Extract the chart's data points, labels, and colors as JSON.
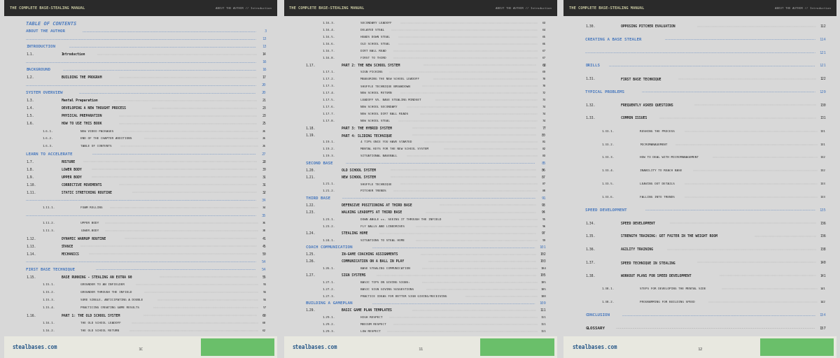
{
  "bg_color": "#d8d8d8",
  "page_bg": "#f5f5f0",
  "header_bg": "#2a2a2a",
  "header_text_color": "#c8c8a0",
  "header_title": "THE COMPLETE BASE-STEALING MANUAL",
  "header_right": "ABOUT THE AUTHOR // Introduction",
  "footer_text": "stealbases.com",
  "footer_bg": "#6abf6a",
  "blue_color": "#4a7abf",
  "dark_text": "#2a2a2a",
  "pages": [
    {
      "page_num": "1C",
      "entries": [
        {
          "level": "section_title",
          "text": "TABLE OF CONTENTS",
          "page": ""
        },
        {
          "level": "h1_blue",
          "text": "ABOUT THE AUTHOR",
          "page": "3"
        },
        {
          "level": "dots_only",
          "text": "",
          "page": "13"
        },
        {
          "level": "h1_blue",
          "text": "INTRODUCTION",
          "page": "13"
        },
        {
          "level": "h2",
          "num": "1.1.",
          "text": "Introduction",
          "page": "14"
        },
        {
          "level": "dots_only",
          "text": "",
          "page": "16"
        },
        {
          "level": "h1_blue",
          "text": "BACKGROUND",
          "page": "16"
        },
        {
          "level": "h2",
          "num": "1.2.",
          "text": "BUILDING THE PROGRAM",
          "page": "17"
        },
        {
          "level": "dots_only",
          "text": "",
          "page": "20"
        },
        {
          "level": "h1_blue",
          "text": "SYSTEM OVERVIEW",
          "page": "20"
        },
        {
          "level": "h2",
          "num": "1.3.",
          "text": "Mental Preparation",
          "page": "21"
        },
        {
          "level": "h2",
          "num": "1.4.",
          "text": "DEVELOPING A NEW THOUGHT PROCESS",
          "page": "23"
        },
        {
          "level": "h2",
          "num": "1.5.",
          "text": "PHYSICAL PREPARATION",
          "page": "23"
        },
        {
          "level": "h2",
          "num": "1.6.",
          "text": "HOW TO USE THIS BOOK",
          "page": "25"
        },
        {
          "level": "h3",
          "num": "1.6.1.",
          "text": "NEW VIDEO PACKAGES",
          "page": "26"
        },
        {
          "level": "h3",
          "num": "1.6.2.",
          "text": "END OF THE CHAPTER ADDITIONS",
          "page": "26"
        },
        {
          "level": "h3",
          "num": "1.6.3.",
          "text": "TABLE OF CONTENTS",
          "page": "26"
        },
        {
          "level": "h1_blue",
          "text": "LEARN TO ACCELERATE",
          "page": "27"
        },
        {
          "level": "h2",
          "num": "1.7.",
          "text": "POSTURE",
          "page": "28"
        },
        {
          "level": "h2",
          "num": "1.8.",
          "text": "LOWER BODY",
          "page": "30"
        },
        {
          "level": "h2",
          "num": "1.9.",
          "text": "UPPER BODY",
          "page": "31"
        },
        {
          "level": "h2",
          "num": "1.10.",
          "text": "CORRECTIVE MOVEMENTS",
          "page": "31"
        },
        {
          "level": "h2",
          "num": "1.11.",
          "text": "STATIC STRETCHING ROUTINE",
          "page": "32"
        },
        {
          "level": "dots_only",
          "text": "",
          "page": "34"
        },
        {
          "level": "h3",
          "num": "1.11.1.",
          "text": "FOAM ROLLING",
          "page": "34"
        },
        {
          "level": "dots_only",
          "text": "",
          "page": "35"
        },
        {
          "level": "h3",
          "num": "1.11.2.",
          "text": "UPPER BODY",
          "page": "36"
        },
        {
          "level": "h3",
          "num": "1.11.3.",
          "text": "LOWER-BODY",
          "page": "38"
        },
        {
          "level": "h2",
          "num": "1.12.",
          "text": "DYNAMIC WARMUP ROUTINE",
          "page": "41"
        },
        {
          "level": "h2",
          "num": "1.13.",
          "text": "STANCE",
          "page": "45"
        },
        {
          "level": "h2",
          "num": "1.14.",
          "text": "MECHANICS",
          "page": "50"
        },
        {
          "level": "dots_only",
          "text": "",
          "page": "54"
        },
        {
          "level": "h1_blue",
          "text": "FIRST BASE TECHNIQUE",
          "page": "54"
        },
        {
          "level": "h2",
          "num": "1.15.",
          "text": "BASE RUNNING - STEALING AN EXTRA 90",
          "page": "55"
        },
        {
          "level": "h3",
          "num": "1.15.1.",
          "text": "GROUNDER TO AN INFIELDER",
          "page": "55"
        },
        {
          "level": "h3",
          "num": "1.15.2.",
          "text": "GROUNDER THROUGH THE INFIELD",
          "page": "56"
        },
        {
          "level": "h3",
          "num": "1.15.3.",
          "text": "SURE SINGLE, ANTICIPATING A DOUBLE",
          "page": "56"
        },
        {
          "level": "h3",
          "num": "1.15.4.",
          "text": "PRACTICING CREATING GAME RESULTS",
          "page": "57"
        },
        {
          "level": "h2",
          "num": "1.16.",
          "text": "PART 1: THE OLD SCHOOL SYSTEM",
          "page": "60"
        },
        {
          "level": "h3",
          "num": "1.16.1.",
          "text": "THE OLD SCHOOL LEADOFF",
          "page": "60"
        },
        {
          "level": "h3",
          "num": "1.16.2.",
          "text": "THE OLD SCHOOL RETURN",
          "page": "62"
        }
      ]
    },
    {
      "page_num": "11",
      "entries": [
        {
          "level": "h3",
          "num": "1.16.3.",
          "text": "SECONDARY LEADOFF",
          "page": "63"
        },
        {
          "level": "h3",
          "num": "1.16.4.",
          "text": "DELAYED STEAL",
          "page": "64"
        },
        {
          "level": "h3",
          "num": "1.16.5.",
          "text": "HEADS DOWN STEAL",
          "page": "65"
        },
        {
          "level": "h3",
          "num": "1.16.6.",
          "text": "OLD SCHOOL STEAL",
          "page": "66"
        },
        {
          "level": "h3",
          "num": "1.16.7.",
          "text": "DIRT BALL READ",
          "page": "67"
        },
        {
          "level": "h3",
          "num": "1.16.8.",
          "text": "FIRST TO THIRD",
          "page": "67"
        },
        {
          "level": "h2",
          "num": "1.17.",
          "text": "PART 2: THE NEW SCHOOL SYSTEM",
          "page": "68"
        },
        {
          "level": "h3",
          "num": "1.17.1.",
          "text": "SIGN PICKING",
          "page": "69"
        },
        {
          "level": "h3",
          "num": "1.17.2.",
          "text": "MEASURING THE NEW SCHOOL LEADOFF",
          "page": "70"
        },
        {
          "level": "h3",
          "num": "1.17.3.",
          "text": "SHUFFLE TECHNIQUE BREAKDOWN",
          "page": "70"
        },
        {
          "level": "h3",
          "num": "1.17.4.",
          "text": "NEW SCHOOL RETURN",
          "page": "72"
        },
        {
          "level": "h3",
          "num": "1.17.5.",
          "text": "LEADOFF VS. BASE STEALING MINDSET",
          "page": "73"
        },
        {
          "level": "h3",
          "num": "1.17.6.",
          "text": "NEW SCHOOL SECONDARY",
          "page": "74"
        },
        {
          "level": "h3",
          "num": "1.17.7.",
          "text": "NEW SCHOOL DIRT BALL READS",
          "page": "74"
        },
        {
          "level": "h3",
          "num": "1.17.8.",
          "text": "NEW SCHOOL STEAL",
          "page": "74"
        },
        {
          "level": "h2",
          "num": "1.18.",
          "text": "PART 3: THE HYBRID SYSTEM",
          "page": "77"
        },
        {
          "level": "h2",
          "num": "1.19.",
          "text": "PART 4: SLIDING TECHNIQUE",
          "page": "80"
        },
        {
          "level": "h3",
          "num": "1.19.1.",
          "text": "4 TIPS ONCE YOU HAVE STARTED",
          "page": "81"
        },
        {
          "level": "h3",
          "num": "1.19.2.",
          "text": "MENTAL KEYS FOR THE NEW SCHOOL SYSTEM",
          "page": "82"
        },
        {
          "level": "h3",
          "num": "1.19.3.",
          "text": "SITUATIONAL BASEBALL",
          "page": "83"
        },
        {
          "level": "h1_blue",
          "text": "SECOND BASE",
          "page": "85"
        },
        {
          "level": "h2",
          "num": "1.20.",
          "text": "OLD SCHOOL SYSTEM",
          "page": "86"
        },
        {
          "level": "h2",
          "num": "1.21.",
          "text": "NEW SCHOOL SYSTEM",
          "page": "87"
        },
        {
          "level": "h3",
          "num": "1.21.1.",
          "text": "SHUFFLE TECHNIQUE",
          "page": "87"
        },
        {
          "level": "h3",
          "num": "1.21.2.",
          "text": "PITCHER TRENDS",
          "page": "88"
        },
        {
          "level": "h1_blue",
          "text": "THIRD BASE",
          "page": "91"
        },
        {
          "level": "h2",
          "num": "1.22.",
          "text": "DEFENSIVE POSITIONING AT THIRD BASE",
          "page": "93"
        },
        {
          "level": "h2",
          "num": "1.23.",
          "text": "WALKING LEADOFFS AT THIRD BASE",
          "page": "94"
        },
        {
          "level": "h3",
          "num": "1.23.1.",
          "text": "DOWN ANGLE vs. SEEING IT THROUGH THE INFIELD",
          "page": "95"
        },
        {
          "level": "h3",
          "num": "1.23.2.",
          "text": "FLY BALLS AND LINEDRIVES",
          "page": "96"
        },
        {
          "level": "h2",
          "num": "1.24.",
          "text": "STEALING HOME",
          "page": "97"
        },
        {
          "level": "h3",
          "num": "1.24.1.",
          "text": "SITUATIONS TO STEAL HOME",
          "page": "99"
        },
        {
          "level": "h1_blue",
          "text": "COACH COMMUNICATION",
          "page": "101"
        },
        {
          "level": "h2",
          "num": "1.25.",
          "text": "IN-GAME COACHING ASSIGNMENTS",
          "page": "102"
        },
        {
          "level": "h2",
          "num": "1.26.",
          "text": "COMMUNICATION ON A BALL IN PLAY",
          "page": "103"
        },
        {
          "level": "h3",
          "num": "1.26.1.",
          "text": "BASE STEALING COMMUNICATION",
          "page": "104"
        },
        {
          "level": "h2",
          "num": "1.27.",
          "text": "SIGN SYSTEMS",
          "page": "105"
        },
        {
          "level": "h3",
          "num": "1.27.1.",
          "text": "BASIC TIPS ON GIVING SIGNS:",
          "page": "105"
        },
        {
          "level": "h3",
          "num": "1.27.2.",
          "text": "BASIC SIGN GIVING SUGGESTIONS",
          "page": "105"
        },
        {
          "level": "h3",
          "num": "1.27.3.",
          "text": "PRACTICE IDEAS FOR BETTER SIGN GIVING/RECEIVING",
          "page": "108"
        },
        {
          "level": "h1_blue",
          "text": "BUILDING A GAMEPLAN",
          "page": "109"
        },
        {
          "level": "h2",
          "num": "1.29.",
          "text": "BASIC GAME PLAN TEMPLATES",
          "page": "111"
        },
        {
          "level": "h3",
          "num": "1.29.1.",
          "text": "HIGH RESPECT",
          "page": "111"
        },
        {
          "level": "h3",
          "num": "1.29.2.",
          "text": "MEDIUM RESPECT",
          "page": "111"
        },
        {
          "level": "h3",
          "num": "1.29.3.",
          "text": "LOW RESPECT",
          "page": "111"
        }
      ]
    },
    {
      "page_num": "12",
      "entries": [
        {
          "level": "h2",
          "num": "1.30.",
          "text": "OPPOSING PITCHER EVALUATION",
          "page": "112"
        },
        {
          "level": "h1_blue",
          "text": "CREATING A BASE STEALER",
          "page": "114"
        },
        {
          "level": "dots_only",
          "text": "",
          "page": "121"
        },
        {
          "level": "h1_blue",
          "text": "DRILLS",
          "page": "121"
        },
        {
          "level": "h2",
          "num": "1.31.",
          "text": "FIRST BASE TECHNIQUE",
          "page": "122"
        },
        {
          "level": "h1_blue",
          "text": "TYPICAL PROBLEMS",
          "page": "129"
        },
        {
          "level": "h2",
          "num": "1.32.",
          "text": "FREQUENTLY ASKED QUESTIONS",
          "page": "130"
        },
        {
          "level": "h2",
          "num": "1.33.",
          "text": "COMMON ISSUES",
          "page": "131"
        },
        {
          "level": "h3",
          "num": "1.33.1.",
          "text": "RUSHING THE PROCESS",
          "page": "131"
        },
        {
          "level": "h3",
          "num": "1.33.2.",
          "text": "MICROMANAGEMENT",
          "page": "131"
        },
        {
          "level": "h3",
          "num": "1.33.3.",
          "text": "HOW TO DEAL WITH MICROMANAGEMENT",
          "page": "132"
        },
        {
          "level": "h3",
          "num": "1.33.4.",
          "text": "INABILITY TO REACH BASE",
          "page": "132"
        },
        {
          "level": "h3",
          "num": "1.33.5.",
          "text": "LEAVING OUT DETAILS",
          "page": "133"
        },
        {
          "level": "h3",
          "num": "1.33.6.",
          "text": "FALLING INTO TRENDS",
          "page": "133"
        },
        {
          "level": "h1_blue",
          "text": "SPEED DEVELOPMENT",
          "page": "135"
        },
        {
          "level": "h2",
          "num": "1.34.",
          "text": "SPEED DEVELOPMENT",
          "page": "136"
        },
        {
          "level": "h2",
          "num": "1.35.",
          "text": "STRENGTH TRAINING: GET FASTER IN THE WEIGHT ROOM",
          "page": "136"
        },
        {
          "level": "h2",
          "num": "1.36.",
          "text": "AGILITY TRAINING",
          "page": "138"
        },
        {
          "level": "h2",
          "num": "1.37.",
          "text": "SPEED TECHNIQUE IN STEALING",
          "page": "140"
        },
        {
          "level": "h2",
          "num": "1.38.",
          "text": "WORKOUT PLANS FOR SPEED DEVELOPMENT",
          "page": "141"
        },
        {
          "level": "h3",
          "num": "1.38.1.",
          "text": "STEPS FOR DEVELOPING THE MENTAL SIDE",
          "page": "141"
        },
        {
          "level": "h3",
          "num": "1.38.2.",
          "text": "PROGRAMMING FOR BUILDING SPEED",
          "page": "142"
        },
        {
          "level": "h1_blue",
          "text": "CONCLUSION",
          "page": "154"
        },
        {
          "level": "h1_dark",
          "text": "GLOSSARY",
          "page": "157"
        }
      ]
    }
  ]
}
